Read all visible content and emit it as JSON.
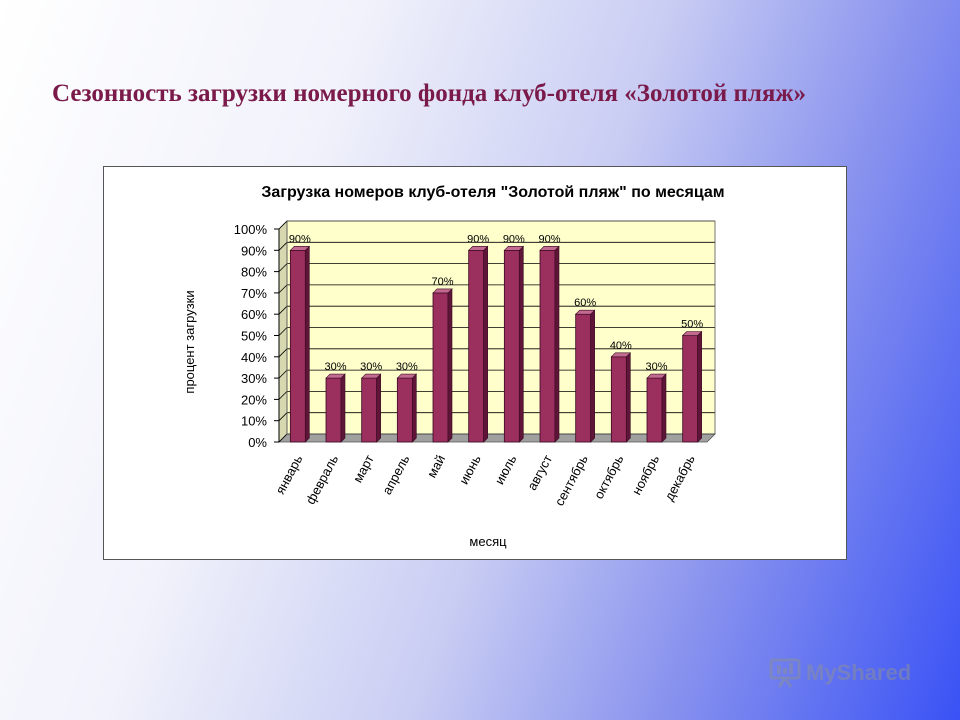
{
  "slide": {
    "title": "Сезонность загрузки номерного фонда клуб-отеля «Золотой пляж»"
  },
  "watermark": {
    "text": "MyShared",
    "icon": "presentation-icon"
  },
  "colors": {
    "bar": "#9b2f5e",
    "plot_bg": "#ffffcc",
    "floor": "#a0a0a0"
  },
  "chart_data": {
    "type": "bar",
    "title": "Загрузка номеров клуб-отеля \"Золотой пляж\" по месяцам",
    "xlabel": "месяц",
    "ylabel": "процент загрузки",
    "ylim": [
      0,
      100
    ],
    "yticks": [
      "0%",
      "10%",
      "20%",
      "30%",
      "40%",
      "50%",
      "60%",
      "70%",
      "80%",
      "90%",
      "100%"
    ],
    "grid": true,
    "legend": "none",
    "categories": [
      "январь",
      "февраль",
      "март",
      "апрель",
      "май",
      "июнь",
      "июль",
      "август",
      "сентябрь",
      "октябрь",
      "ноябрь",
      "декабрь"
    ],
    "values": [
      90,
      30,
      30,
      30,
      70,
      90,
      90,
      90,
      60,
      40,
      30,
      50
    ],
    "data_labels": [
      "90%",
      "30%",
      "30%",
      "30%",
      "70%",
      "90%",
      "90%",
      "90%",
      "60%",
      "40%",
      "30%",
      "50%"
    ]
  }
}
